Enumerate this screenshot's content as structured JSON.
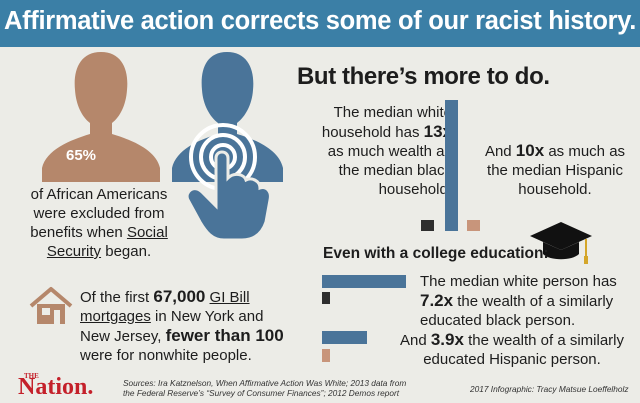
{
  "header": {
    "title": "Affirmative action corrects some of our racist history."
  },
  "social_security": {
    "percent": "65%",
    "line1": "of African Americans",
    "line2": "were excluded from",
    "line3_prefix": "benefits when ",
    "line3_link": "Social",
    "line4_link": "Security",
    "line4_suffix": " began."
  },
  "gi_bill": {
    "l1_prefix": "Of the first ",
    "l1_bold": "67,000",
    "l1_space": " ",
    "l1_link": "GI Bill",
    "l2_link": "mortgages",
    "l2_suffix": " in New York and",
    "l3_prefix": "New Jersey, ",
    "l3_bold": "fewer than 100",
    "l4": "were for nonwhite people."
  },
  "more": {
    "title": "But there’s more to do.",
    "black": {
      "l1": "The median white",
      "l2_prefix": "household has ",
      "l2_bold": "13x",
      "l3": "as much wealth as",
      "l4": "the median black",
      "l5": "household.",
      "ratio": 13
    },
    "hispanic": {
      "l1_prefix": "And ",
      "l1_bold": "10x",
      "l1_suffix": " as much as",
      "l2": "the median Hispanic",
      "l3": "household.",
      "ratio": 10
    }
  },
  "college": {
    "title": "Even with a college education:",
    "black": {
      "l1": "The median white person has",
      "l2_bold": "7.2x",
      "l2_suffix": " the wealth of a similarly",
      "l3": "educated black person.",
      "ratio": 7.2
    },
    "hispanic": {
      "l1_prefix": "And ",
      "l1_bold": "3.9x",
      "l1_suffix": " the wealth of a similarly",
      "l2": "educated Hispanic person.",
      "ratio": 3.9
    }
  },
  "footer": {
    "logo_the": "THE",
    "logo": "Nation.",
    "sources_l1": "Sources: Ira Katznelson, When Affirmative Action Was White; 2013 data from",
    "sources_l2": "the Federal Reserve’s “Survey of Consumer Finances”; 2012 Demos report",
    "credit": "2017 Infographic: Tracy Matsue Loeffelholz"
  },
  "colors": {
    "banner": "#3b7fa6",
    "white_bar": "#4a7499",
    "black_bar": "#2e2e2e",
    "hispanic_bar": "#c8957b",
    "figure_brown": "#b5876b",
    "figure_blue": "#4a7499",
    "logo_red": "#c4202a"
  },
  "icons": [
    "person-silhouette-icon",
    "hand-touch-icon",
    "house-icon",
    "graduation-cap-icon"
  ]
}
